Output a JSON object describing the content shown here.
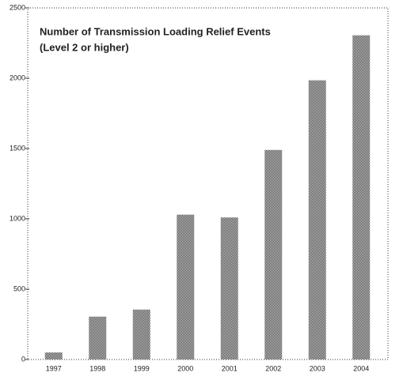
{
  "chart_data": {
    "type": "bar",
    "title": "Number of Transmission Loading Relief Events",
    "subtitle": "(Level 2 or higher)",
    "categories": [
      "1997",
      "1998",
      "1999",
      "2000",
      "2001",
      "2002",
      "2003",
      "2004"
    ],
    "values": [
      50,
      305,
      355,
      1030,
      1010,
      1490,
      1985,
      2305
    ],
    "color": "#3a3a3a",
    "ylim": [
      0,
      2500
    ],
    "yticks": [
      0,
      500,
      1000,
      1500,
      2000,
      2500
    ],
    "grid": false
  }
}
